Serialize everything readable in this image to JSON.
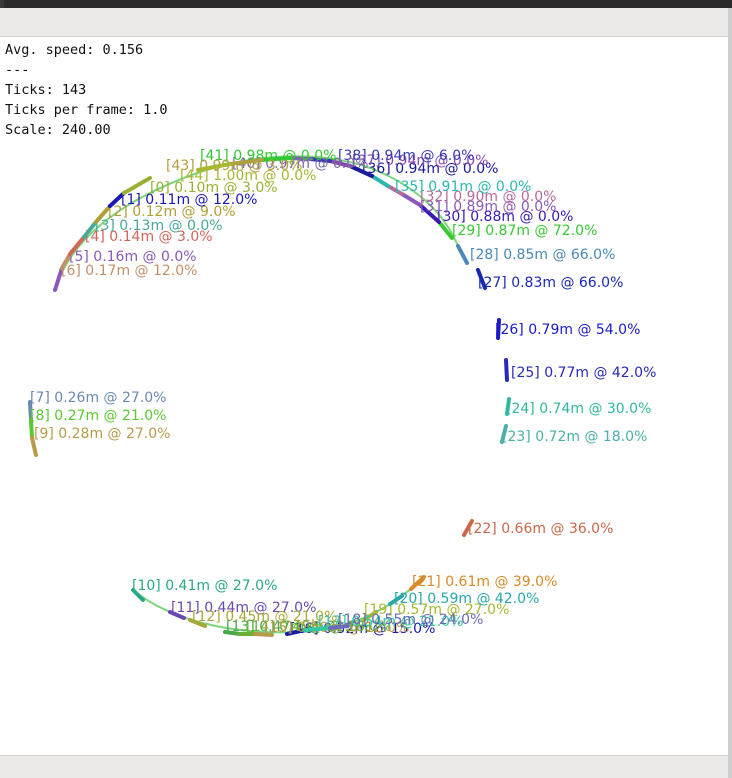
{
  "hud": {
    "avg_speed": "Avg. speed: 0.156",
    "separator": "---",
    "ticks": "Ticks: 143",
    "ticks_per_frame": "Ticks per frame: 1.0",
    "scale": "Scale: 240.00"
  },
  "trajectory": {
    "arc_color": "#7bd67b",
    "markers": [
      {
        "label": "[5] 0.16m @ 0.0%",
        "color": "#8a5ab8"
      },
      {
        "label": "[6] 0.17m @ 12.0%",
        "color": "#c4906a"
      },
      {
        "label": "[4] 0.14m @ 3.0%",
        "color": "#d2665a"
      },
      {
        "label": "[3] 0.13m @ 0.0%",
        "color": "#49a89a"
      },
      {
        "label": "[2] 0.12m @ 9.0%",
        "color": "#b0a038"
      },
      {
        "label": "[1] 0.11m @ 12.0%",
        "color": "#1a1ab8"
      },
      {
        "label": "[0] 0.10m @ 3.0%",
        "color": "#9ab032"
      },
      {
        "label": "[7] 0.26m @ 27.0%",
        "color": "#6a8ab0"
      },
      {
        "label": "[8] 0.27m @ 21.0%",
        "color": "#5ac832"
      },
      {
        "label": "[9] 0.28m @ 27.0%",
        "color": "#b89a4a"
      },
      {
        "label": "[10] 0.41m @ 27.0%",
        "color": "#2aa888"
      },
      {
        "label": "[11] 0.44m @ 27.0%",
        "color": "#6a4ab0"
      },
      {
        "label": "[12] 0.45m @ 21.0%",
        "color": "#a8a838"
      },
      {
        "label": "[16] 0.52m @ 15.0%",
        "color": "#1a1aa8"
      },
      {
        "label": "[19] 0.57m @ 27.0%",
        "color": "#a8b832"
      },
      {
        "label": "[20] 0.59m @ 42.0%",
        "color": "#2aa8a8"
      },
      {
        "label": "[21] 0.61m @ 39.0%",
        "color": "#d88a2a"
      },
      {
        "label": "[22] 0.66m @ 36.0%",
        "color": "#c86a4a"
      },
      {
        "label": "[23] 0.72m @ 18.0%",
        "color": "#4ab0a8"
      },
      {
        "label": "[24] 0.74m @ 30.0%",
        "color": "#32b8a0"
      },
      {
        "label": "[25] 0.77m @ 42.0%",
        "color": "#2a2ab8"
      },
      {
        "label": "[26] 0.79m @ 54.0%",
        "color": "#1a1ac8"
      },
      {
        "label": "[27] 0.83m @ 66.0%",
        "color": "#1a2ab0"
      },
      {
        "label": "[28] 0.85m @ 66.0%",
        "color": "#4a8ab8"
      },
      {
        "label": "[29] 0.87m @ 72.0%",
        "color": "#38c832"
      },
      {
        "label": "[30] 0.88m @ 0.0%",
        "color": "#3a1ab0"
      },
      {
        "label": "[31] 0.89m @ 0.0%",
        "color": "#8a5ab8"
      },
      {
        "label": "[32] 0.90m @ 0.0%",
        "color": "#b86a9a"
      },
      {
        "label": "[35] 0.91m @ 0.0%",
        "color": "#2ab8b0"
      },
      {
        "label": "[36] 0.94m @ 0.0%",
        "color": "#1a1a9a"
      },
      {
        "label": "[37] 0.94m @ 0.0%",
        "color": "#8a4ab0"
      },
      {
        "label": "[38] 0.94m @ 6.0%",
        "color": "#3a3ab8"
      },
      {
        "label": "[40] 0.97m @ 0.0%",
        "color": "#7a6aa8"
      },
      {
        "label": "[41] 0.98m @ 0.0%",
        "color": "#32c832"
      },
      {
        "label": "[43] 0.99m @ 3.0%",
        "color": "#b0a040"
      },
      {
        "label": "[44] 1.00m @ 0.0%",
        "color": "#a8b832"
      },
      {
        "label": "[13] 0.47m @ 21.0%",
        "color": "#4aa848"
      },
      {
        "label": "[14] 0.49m @ 18.0%",
        "color": "#6ab032"
      },
      {
        "label": "[15] 0.50m @ 12.0%",
        "color": "#b89a4a"
      },
      {
        "label": "[17] 0.54m @ 21.0%",
        "color": "#32c8a0"
      },
      {
        "label": "[18] 0.55m @ 24.0%",
        "color": "#6a6ab8"
      }
    ]
  }
}
